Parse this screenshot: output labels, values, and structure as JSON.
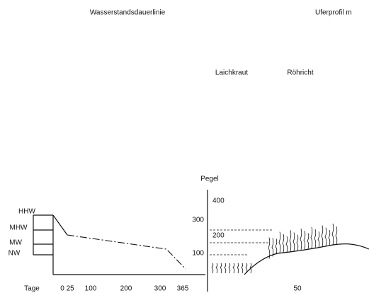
{
  "titles": {
    "left": "Wasserstandsdauerlinie",
    "right": "Uferprofil m"
  },
  "zones": [
    "Laichkraut",
    "Röhricht"
  ],
  "gauge": {
    "label": "Pegel",
    "ticks": [
      "400",
      "300",
      "200",
      "100"
    ]
  },
  "levels": [
    "HHW",
    "MHW",
    "MW",
    "NW"
  ],
  "days_axis": {
    "label": "Tage",
    "ticks": [
      "0 25",
      "100",
      "200",
      "300",
      "365"
    ]
  },
  "profile_axis": {
    "ticks": [
      "50"
    ]
  }
}
